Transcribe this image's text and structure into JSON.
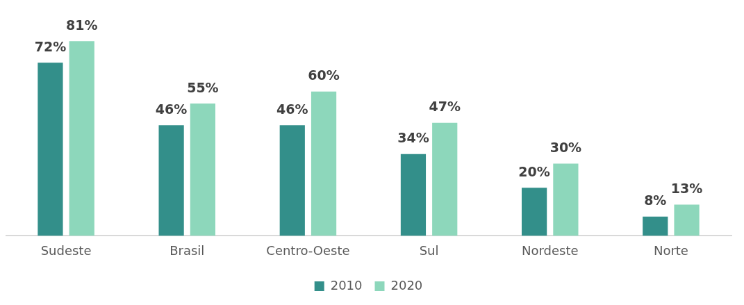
{
  "chart_data": {
    "type": "bar",
    "categories": [
      "Sudeste",
      "Brasil",
      "Centro-Oeste",
      "Sul",
      "Nordeste",
      "Norte"
    ],
    "series": [
      {
        "name": "2010",
        "color": "#338f8a",
        "values": [
          72,
          46,
          46,
          34,
          20,
          8
        ],
        "value_labels": [
          "72%",
          "46%",
          "46%",
          "34%",
          "20%",
          "8%"
        ]
      },
      {
        "name": "2020",
        "color": "#8dd7bb",
        "values": [
          81,
          55,
          60,
          47,
          30,
          13
        ],
        "value_labels": [
          "81%",
          "55%",
          "60%",
          "47%",
          "30%",
          "13%"
        ]
      }
    ],
    "legend": "bottom",
    "grid": false
  }
}
